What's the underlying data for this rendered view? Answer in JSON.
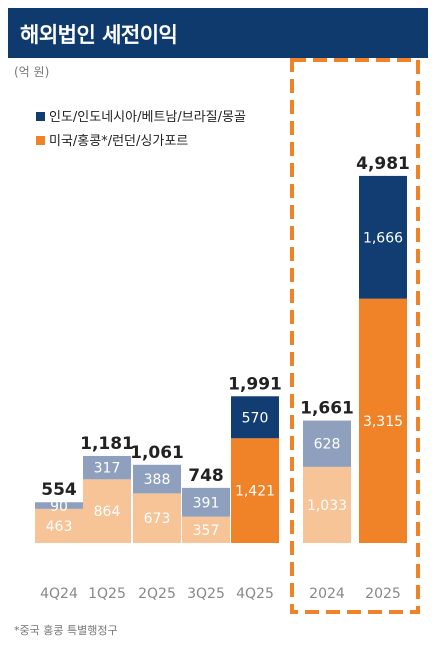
{
  "title": "해외법인 세전이익",
  "unit": "(억 원)",
  "footnote": "*중국 홍콩 특별행정구",
  "colors": {
    "title_bg": "#0e3a6e",
    "dark_navy": "#123d73",
    "dark_orange": "#f08228",
    "light_blue": "#8ea0bd",
    "light_peach": "#f7c498",
    "highlight_border": "#f08228"
  },
  "chart_data": {
    "type": "bar",
    "stacked": true,
    "categories": [
      "4Q24",
      "1Q25",
      "2Q25",
      "3Q25",
      "4Q25",
      "2024",
      "2025"
    ],
    "series": [
      {
        "name": "미국/홍콩*/런던/싱가포르",
        "values": [
          463,
          864,
          673,
          357,
          1421,
          1033,
          3315
        ]
      },
      {
        "name": "인도/인도네시아/베트남/브라질/몽골",
        "values": [
          90,
          317,
          388,
          391,
          570,
          628,
          1666
        ]
      }
    ],
    "totals": [
      554,
      1181,
      1061,
      748,
      1991,
      1661,
      4981
    ],
    "total_labels": [
      "554",
      "1,181",
      "1,061",
      "748",
      "1,991",
      "1,661",
      "4,981"
    ],
    "value_labels": {
      "bottom": [
        "463",
        "864",
        "673",
        "357",
        "1,421",
        "1,033",
        "3,315"
      ],
      "top": [
        "90",
        "317",
        "388",
        "391",
        "570",
        "628",
        "1,666"
      ]
    },
    "highlight_categories": [
      "2024",
      "2025"
    ],
    "legend_position": "top-left",
    "grid": false
  }
}
